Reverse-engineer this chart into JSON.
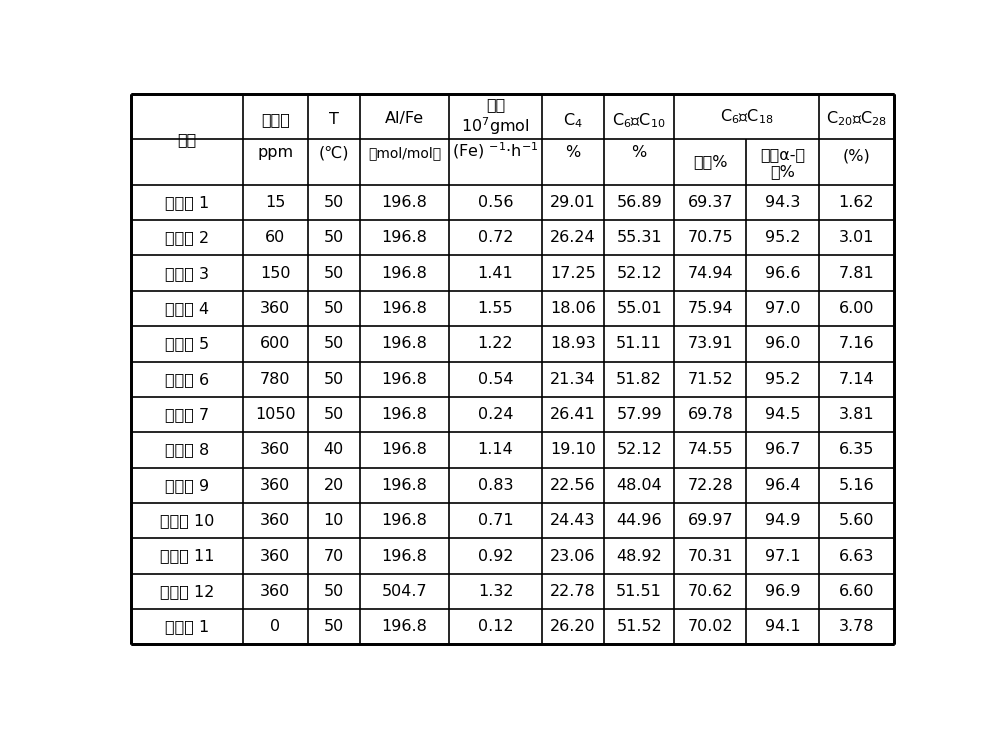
{
  "rows": [
    [
      "实施例 1",
      "15",
      "50",
      "196.8",
      "0.56",
      "29.01",
      "56.89",
      "69.37",
      "94.3",
      "1.62"
    ],
    [
      "实施例 2",
      "60",
      "50",
      "196.8",
      "0.72",
      "26.24",
      "55.31",
      "70.75",
      "95.2",
      "3.01"
    ],
    [
      "实施例 3",
      "150",
      "50",
      "196.8",
      "1.41",
      "17.25",
      "52.12",
      "74.94",
      "96.6",
      "7.81"
    ],
    [
      "实施例 4",
      "360",
      "50",
      "196.8",
      "1.55",
      "18.06",
      "55.01",
      "75.94",
      "97.0",
      "6.00"
    ],
    [
      "实施例 5",
      "600",
      "50",
      "196.8",
      "1.22",
      "18.93",
      "51.11",
      "73.91",
      "96.0",
      "7.16"
    ],
    [
      "实施例 6",
      "780",
      "50",
      "196.8",
      "0.54",
      "21.34",
      "51.82",
      "71.52",
      "95.2",
      "7.14"
    ],
    [
      "实施例 7",
      "1050",
      "50",
      "196.8",
      "0.24",
      "26.41",
      "57.99",
      "69.78",
      "94.5",
      "3.81"
    ],
    [
      "实施例 8",
      "360",
      "40",
      "196.8",
      "1.14",
      "19.10",
      "52.12",
      "74.55",
      "96.7",
      "6.35"
    ],
    [
      "实施例 9",
      "360",
      "20",
      "196.8",
      "0.83",
      "22.56",
      "48.04",
      "72.28",
      "96.4",
      "5.16"
    ],
    [
      "实施例 10",
      "360",
      "10",
      "196.8",
      "0.71",
      "24.43",
      "44.96",
      "69.97",
      "94.9",
      "5.60"
    ],
    [
      "实施例 11",
      "360",
      "70",
      "196.8",
      "0.92",
      "23.06",
      "48.92",
      "70.31",
      "97.1",
      "6.63"
    ],
    [
      "实施例 12",
      "360",
      "50",
      "504.7",
      "1.32",
      "22.78",
      "51.51",
      "70.62",
      "96.9",
      "6.60"
    ],
    [
      "对比例 1",
      "0",
      "50",
      "196.8",
      "0.12",
      "26.20",
      "51.52",
      "70.02",
      "94.1",
      "3.78"
    ]
  ],
  "bg_color": "#ffffff",
  "line_color": "#000000",
  "text_color": "#000000",
  "col_widths_rel": [
    1.35,
    0.78,
    0.63,
    1.08,
    1.12,
    0.75,
    0.85,
    0.87,
    0.88,
    0.9
  ],
  "header_font_size": 11.5,
  "row_font_size": 11.5
}
